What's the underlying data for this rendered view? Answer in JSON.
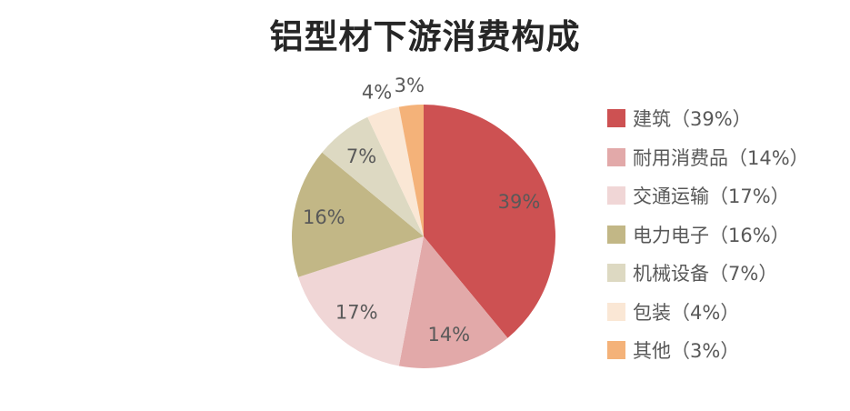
{
  "title": "铝型材下游消费构成",
  "chart_data": {
    "type": "pie",
    "title": "铝型材下游消费构成",
    "legend_position": "right",
    "start_angle_deg": 0,
    "direction": "clockwise",
    "label_color": "#595959",
    "title_color": "#262626",
    "background_color": "#ffffff",
    "slices": [
      {
        "label": "建筑",
        "value": 39,
        "percent_label": "39%",
        "legend_label": "建筑（39%）",
        "color": "#CD5152"
      },
      {
        "label": "耐用消费品",
        "value": 14,
        "percent_label": "14%",
        "legend_label": "耐用消费品（14%）",
        "color": "#E2A9A9"
      },
      {
        "label": "交通运输",
        "value": 17,
        "percent_label": "17%",
        "legend_label": "交通运输（17%）",
        "color": "#F0D6D6"
      },
      {
        "label": "电力电子",
        "value": 16,
        "percent_label": "16%",
        "legend_label": "电力电子（16%）",
        "color": "#C2B786"
      },
      {
        "label": "机械设备",
        "value": 7,
        "percent_label": "7%",
        "legend_label": "机械设备（7%）",
        "color": "#DDD9C2"
      },
      {
        "label": "包装",
        "value": 4,
        "percent_label": "4%",
        "legend_label": "包装（4%）",
        "color": "#FAE7D5"
      },
      {
        "label": "其他",
        "value": 3,
        "percent_label": "3%",
        "legend_label": "其他（3%）",
        "color": "#F4B279"
      }
    ]
  }
}
